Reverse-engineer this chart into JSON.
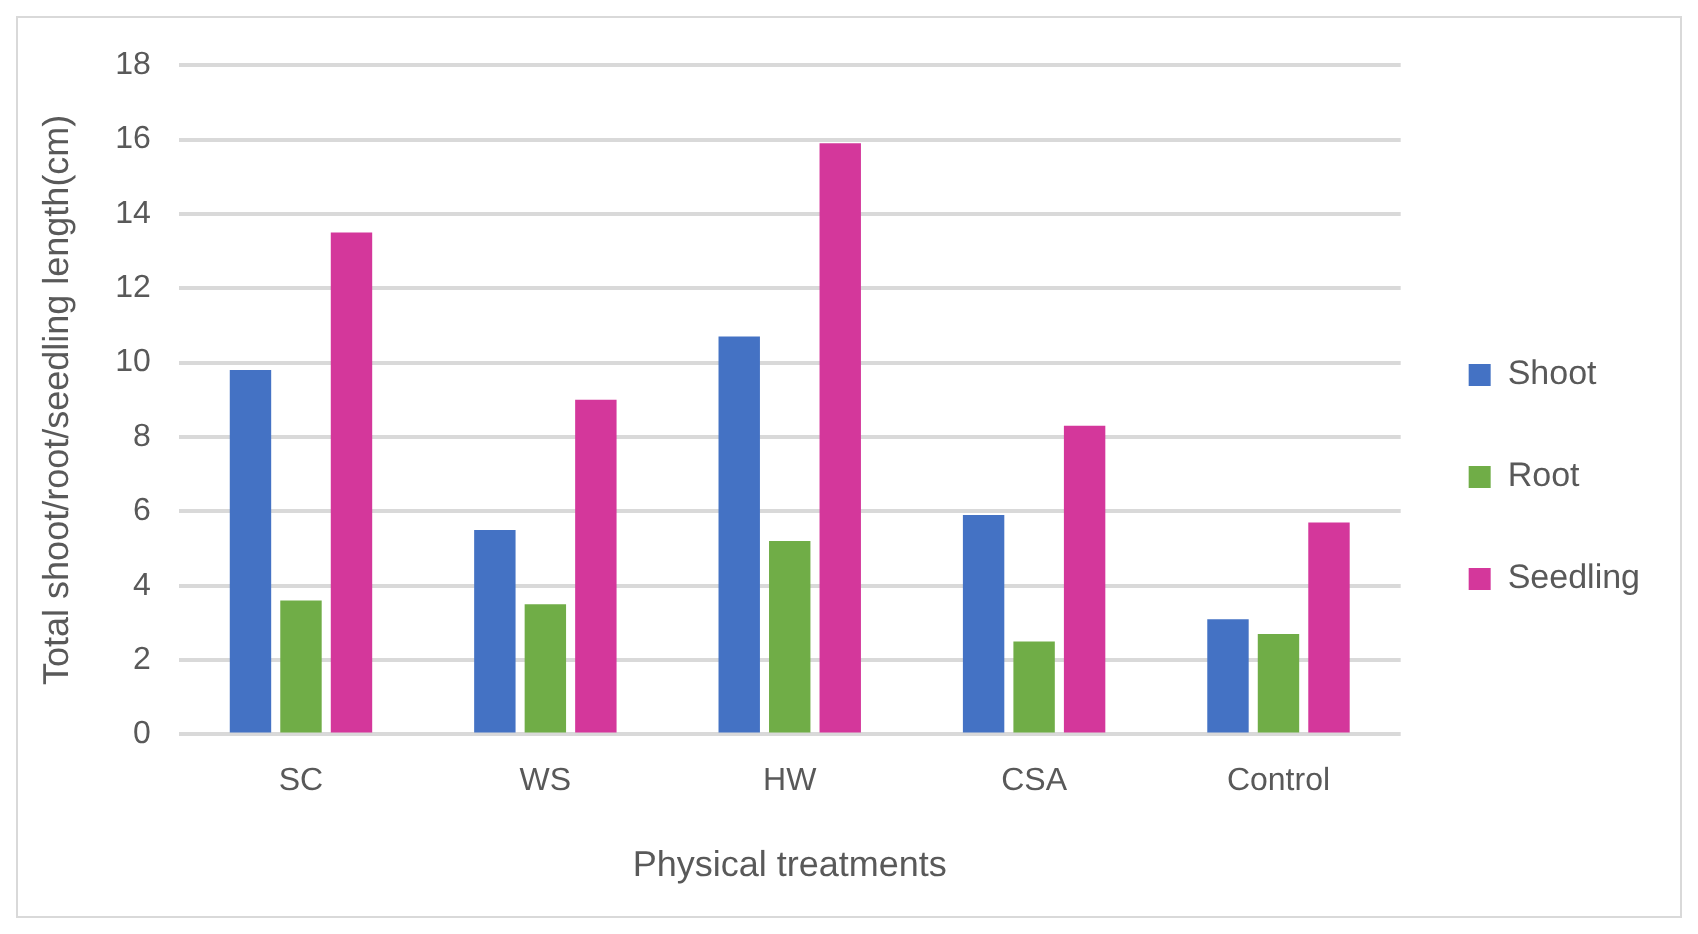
{
  "chart_data": {
    "type": "bar",
    "xlabel": "Physical treatments",
    "ylabel": "Total shoot/root/seedling length(cm)",
    "categories": [
      "SC",
      "WS",
      "HW",
      "CSA",
      "Control"
    ],
    "series": [
      {
        "name": "Shoot",
        "color": "#4472c4",
        "values": [
          9.8,
          5.5,
          10.7,
          5.9,
          3.1
        ]
      },
      {
        "name": "Root",
        "color": "#70ad47",
        "values": [
          3.6,
          3.5,
          5.2,
          2.5,
          2.7
        ]
      },
      {
        "name": "Seedling",
        "color": "#d4379b",
        "values": [
          13.5,
          9.0,
          15.9,
          8.3,
          5.7
        ]
      }
    ],
    "ylim": [
      0,
      18
    ],
    "yticks": [
      0,
      2,
      4,
      6,
      8,
      10,
      12,
      14,
      16,
      18
    ],
    "grid": "y",
    "legend": "right"
  }
}
